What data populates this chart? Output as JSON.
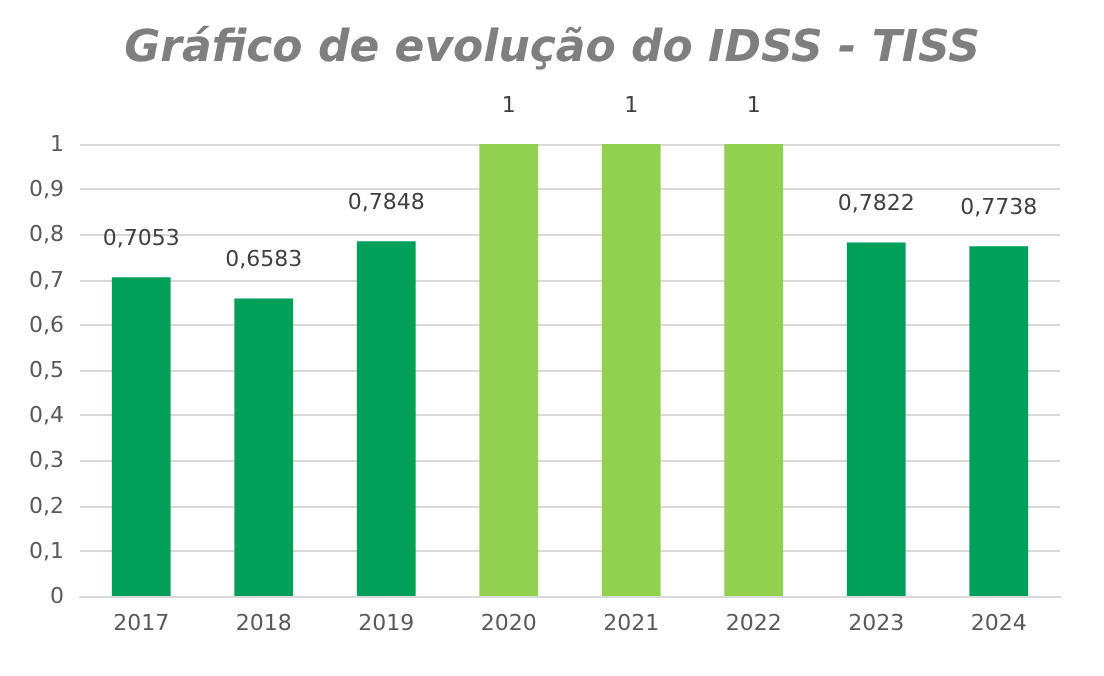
{
  "chart_data": {
    "type": "bar",
    "title": "Gráfico de evolução do IDSS - TISS",
    "categories": [
      "2017",
      "2018",
      "2019",
      "2020",
      "2021",
      "2022",
      "2023",
      "2024"
    ],
    "values": [
      0.7053,
      0.6583,
      0.7848,
      1,
      1,
      1,
      0.7822,
      0.7738
    ],
    "colors": [
      "#00a05a",
      "#00a05a",
      "#00a05a",
      "#92d050",
      "#92d050",
      "#92d050",
      "#00a05a",
      "#00a05a"
    ],
    "value_labels": [
      "0,7053",
      "0,6583",
      "0,7848",
      "1",
      "1",
      "1",
      "0,7822",
      "0,7738"
    ],
    "ylim": [
      0,
      1
    ],
    "yticks": [
      0,
      {
        "value": 0.1,
        "label": "0,1"
      },
      {
        "value": 0.2,
        "label": "0,2"
      },
      {
        "value": 0.3,
        "label": "0,3"
      },
      {
        "value": 0.4,
        "label": "0,4"
      },
      {
        "value": 0.5,
        "label": "0,5"
      },
      {
        "value": 0.6,
        "label": "0,6"
      },
      {
        "value": 0.7,
        "label": "0,7"
      },
      {
        "value": 0.8,
        "label": "0,8"
      },
      {
        "value": 0.9,
        "label": "0,9"
      },
      1
    ],
    "grid": "y"
  }
}
